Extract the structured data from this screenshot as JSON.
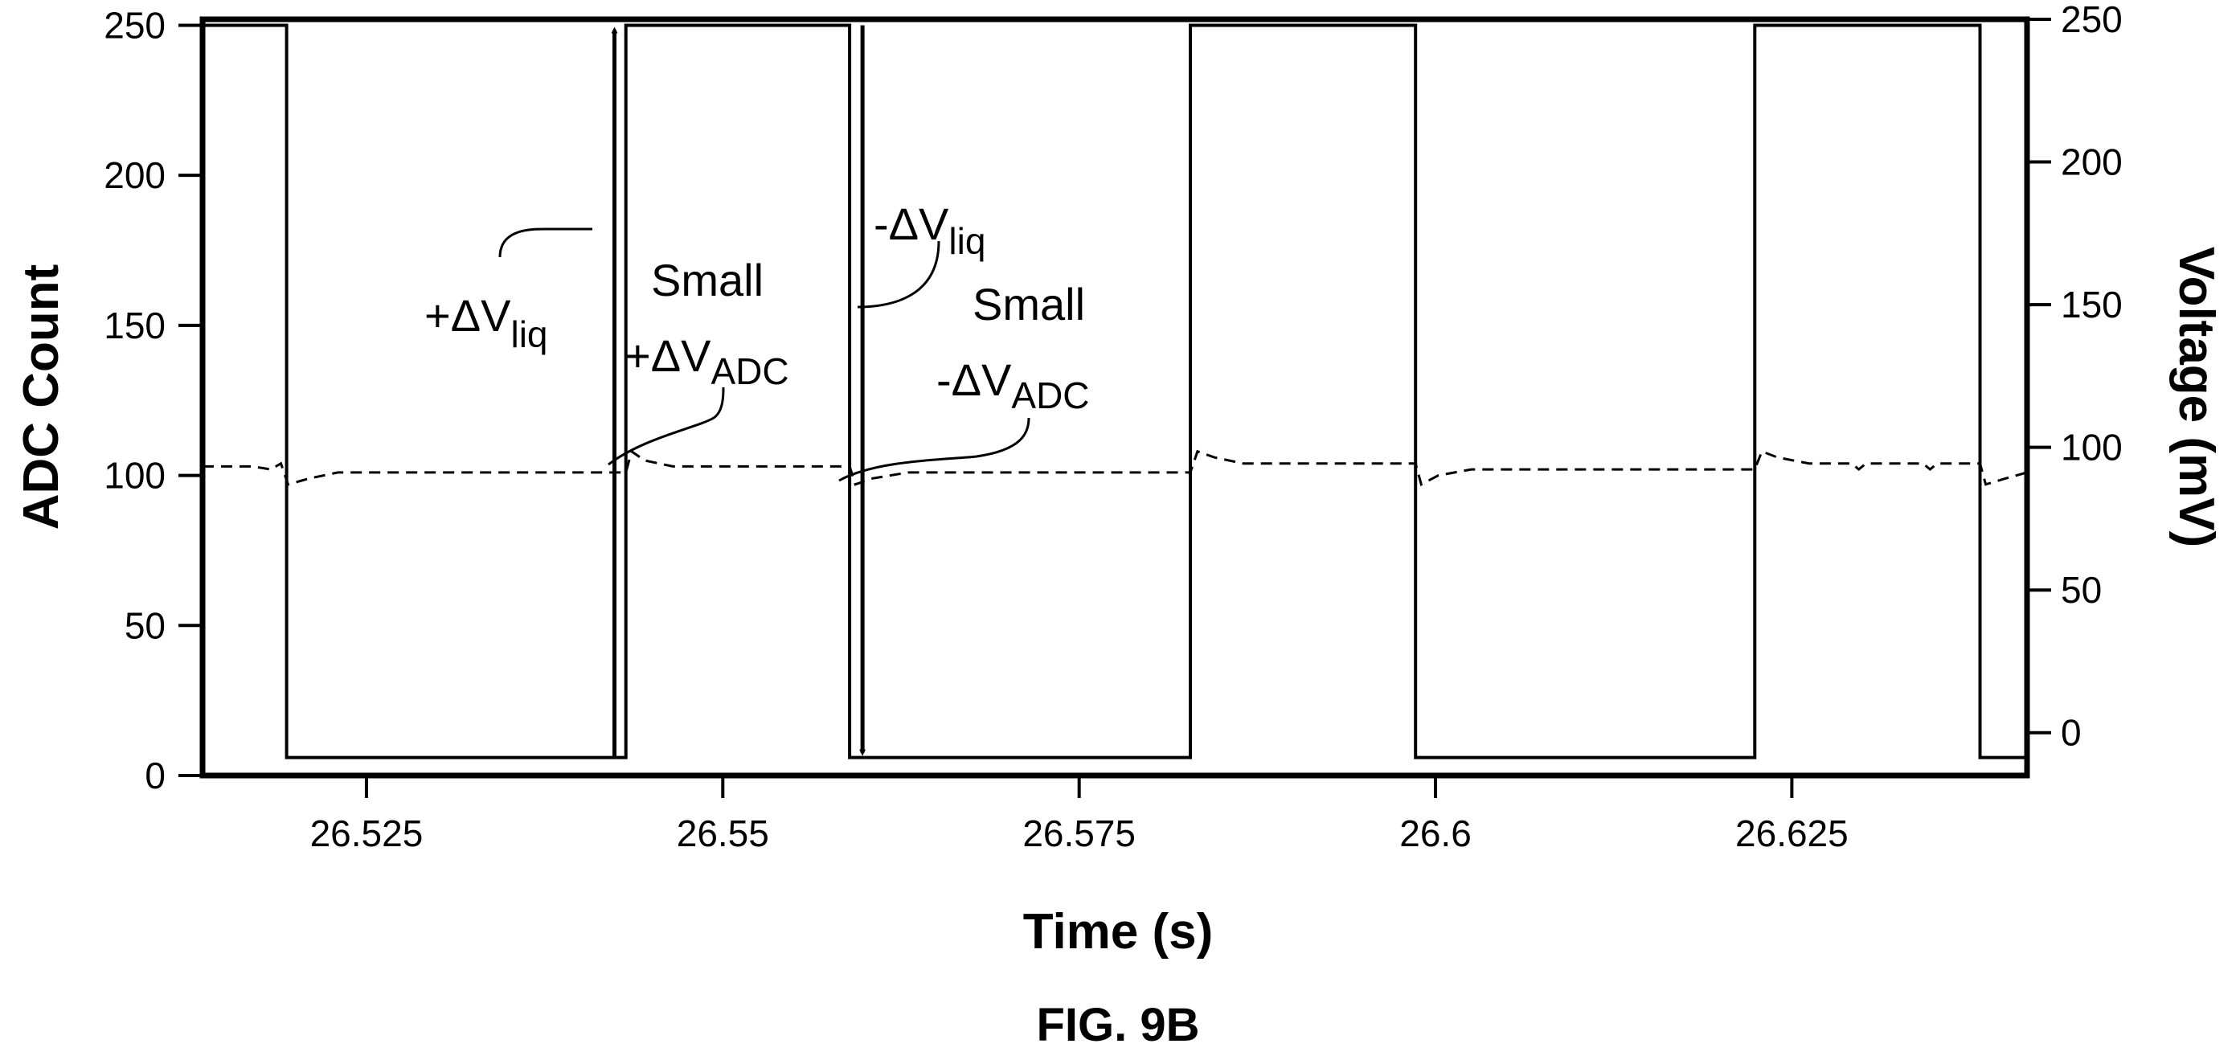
{
  "chart_data": {
    "type": "line",
    "figure_label": "FIG. 9B",
    "xlabel": "Time (s)",
    "ylabel": "ADC Count",
    "y2label": "Voltage (mV)",
    "xlim": [
      26.5135,
      26.6415
    ],
    "ylim": [
      0,
      252
    ],
    "y2lim": [
      -15,
      250
    ],
    "xticks": [
      26.525,
      26.55,
      26.575,
      26.6,
      26.625
    ],
    "xtick_labels": [
      "26.525",
      "26.55",
      "26.575",
      "26.6",
      "26.625"
    ],
    "yticks": [
      0,
      50,
      100,
      150,
      200,
      250
    ],
    "ytick_labels": [
      "0",
      "50",
      "100",
      "150",
      "200",
      "250"
    ],
    "y2ticks": [
      0,
      50,
      100,
      150,
      200,
      250
    ],
    "y2tick_labels": [
      "0",
      "50",
      "100",
      "150",
      "200",
      "250"
    ],
    "grid": false,
    "series": [
      {
        "axis": "left",
        "style": "solid",
        "x": [
          26.5135,
          26.5194,
          26.5194,
          26.5432,
          26.5432,
          26.5589,
          26.5589,
          26.5828,
          26.5828,
          26.5986,
          26.5986,
          26.6224,
          26.6224,
          26.6382,
          26.6382,
          26.6415
        ],
        "y": [
          250,
          250,
          6,
          6,
          250,
          250,
          6,
          6,
          250,
          250,
          6,
          6,
          250,
          250,
          6,
          6
        ]
      },
      {
        "axis": "left",
        "style": "dashed",
        "x": [
          26.5135,
          26.517,
          26.5183,
          26.519,
          26.5195,
          26.521,
          26.523,
          26.526,
          26.5432,
          26.5436,
          26.5445,
          26.5465,
          26.5589,
          26.5593,
          26.5605,
          26.563,
          26.5828,
          26.5833,
          26.5845,
          26.5865,
          26.5986,
          26.599,
          26.6002,
          26.6025,
          26.6224,
          26.6229,
          26.624,
          26.6262,
          26.6292,
          26.6297,
          26.6302,
          26.6342,
          26.6347,
          26.6352,
          26.6382,
          26.6386,
          26.64,
          26.6415
        ],
        "y": [
          103,
          103,
          102,
          104,
          97,
          99,
          101,
          101,
          101,
          108,
          105,
          103,
          103,
          97,
          99,
          101,
          101,
          108,
          106,
          104,
          104,
          97,
          100,
          102,
          102,
          108,
          106,
          104,
          104,
          102,
          104,
          104,
          102,
          104,
          104,
          97,
          99,
          101
        ]
      }
    ],
    "annotations": [
      {
        "id": "plus-dv-liq",
        "prefix": "+ΔV",
        "subscript": "liq"
      },
      {
        "id": "small-plus-dv-adc",
        "line1": "Small",
        "prefix": "+ΔV",
        "subscript": "ADC"
      },
      {
        "id": "minus-dv-liq",
        "prefix": "-ΔV",
        "subscript": "liq"
      },
      {
        "id": "small-minus-dv-adc",
        "line1": "Small",
        "prefix": "-ΔV",
        "subscript": "ADC"
      }
    ],
    "arrows": [
      {
        "id": "up-arrow",
        "x": 26.5424,
        "from": 6,
        "to": 250
      },
      {
        "id": "down-arrow",
        "x": 26.5598,
        "from": 250,
        "to": 6
      }
    ]
  }
}
